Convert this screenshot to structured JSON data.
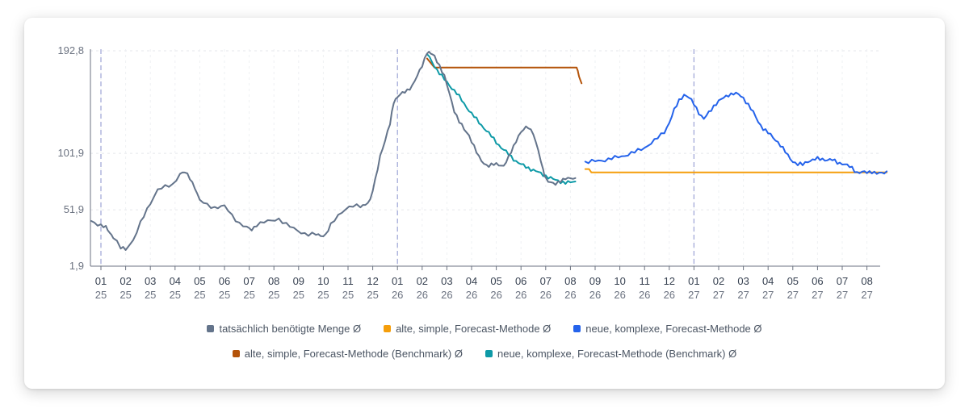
{
  "chart_data": {
    "type": "line",
    "y_ticks": [
      "192,8",
      "101,9",
      "51,9",
      "1,9"
    ],
    "ylim": [
      1.9,
      192.8
    ],
    "x_ticks": [
      {
        "m": "01",
        "y": "25"
      },
      {
        "m": "02",
        "y": "25"
      },
      {
        "m": "03",
        "y": "25"
      },
      {
        "m": "04",
        "y": "25"
      },
      {
        "m": "05",
        "y": "25"
      },
      {
        "m": "06",
        "y": "25"
      },
      {
        "m": "07",
        "y": "25"
      },
      {
        "m": "08",
        "y": "25"
      },
      {
        "m": "09",
        "y": "25"
      },
      {
        "m": "10",
        "y": "25"
      },
      {
        "m": "11",
        "y": "25"
      },
      {
        "m": "12",
        "y": "25"
      },
      {
        "m": "01",
        "y": "26"
      },
      {
        "m": "02",
        "y": "26"
      },
      {
        "m": "03",
        "y": "26"
      },
      {
        "m": "04",
        "y": "26"
      },
      {
        "m": "05",
        "y": "26"
      },
      {
        "m": "06",
        "y": "26"
      },
      {
        "m": "07",
        "y": "26"
      },
      {
        "m": "08",
        "y": "26"
      },
      {
        "m": "09",
        "y": "26"
      },
      {
        "m": "10",
        "y": "26"
      },
      {
        "m": "11",
        "y": "26"
      },
      {
        "m": "12",
        "y": "26"
      },
      {
        "m": "01",
        "y": "27"
      },
      {
        "m": "02",
        "y": "27"
      },
      {
        "m": "03",
        "y": "27"
      },
      {
        "m": "04",
        "y": "27"
      },
      {
        "m": "05",
        "y": "27"
      },
      {
        "m": "06",
        "y": "27"
      },
      {
        "m": "07",
        "y": "27"
      },
      {
        "m": "08",
        "y": "27"
      }
    ],
    "year_boundaries": [
      "2025-01",
      "2026-01",
      "2027-01"
    ],
    "grid": true,
    "legend_position": "bottom",
    "series": [
      {
        "name": "tatsächlich benötigte Menge Ø",
        "color": "#64748b",
        "x": [
          -0.4,
          0,
          0.2,
          0.35,
          0.5,
          0.8,
          1,
          1.3,
          1.6,
          2,
          2.3,
          2.6,
          2.9,
          3.2,
          3.4,
          3.6,
          3.8,
          4,
          4.3,
          4.6,
          5,
          5.3,
          5.6,
          5.9,
          6.1,
          6.3,
          6.6,
          6.9,
          7.2,
          7.5,
          7.8,
          8.1,
          8.4,
          8.7,
          8.9,
          9.1,
          9.3,
          9.6,
          9.9,
          10.2,
          10.5,
          10.7,
          10.9,
          11.1,
          11.3,
          11.5,
          11.7,
          11.85,
          12,
          12.2,
          12.4,
          12.6,
          12.8,
          13,
          13.2,
          13.35,
          13.5,
          13.7,
          13.9,
          14.1,
          14.3,
          14.5,
          14.7,
          14.9,
          15.1,
          15.3,
          15.5,
          15.7,
          15.9,
          16.1,
          16.3,
          16.5,
          16.7,
          16.9,
          17.1,
          17.3,
          17.5,
          17.7,
          17.9,
          18,
          18.2,
          18.4,
          18.6,
          18.8,
          19,
          19.2
        ],
        "y": [
          42,
          38,
          36,
          32,
          28,
          18,
          17,
          25,
          40,
          58,
          70,
          72,
          74,
          84,
          85,
          80,
          72,
          60,
          56,
          54,
          55,
          47,
          40,
          36,
          34,
          39,
          41,
          42,
          44,
          39,
          35,
          32,
          30,
          30,
          29,
          30,
          38,
          47,
          53,
          55,
          55,
          57,
          60,
          78,
          100,
          113,
          128,
          148,
          152,
          155,
          158,
          162,
          170,
          180,
          192,
          190,
          188,
          180,
          170,
          155,
          140,
          130,
          123,
          118,
          108,
          98,
          93,
          91,
          92,
          92,
          91,
          98,
          108,
          118,
          123,
          125,
          120,
          104,
          86,
          80,
          76,
          74,
          78,
          80,
          79,
          80
        ]
      },
      {
        "name": "alte, simple, Forecast-Methode Ø",
        "color": "#f59e0b",
        "x": [
          19.6,
          19.75,
          19.85,
          20.2,
          21,
          22,
          23,
          24,
          25,
          26,
          27,
          28,
          29,
          30,
          31,
          31.8
        ],
        "y": [
          88,
          88,
          85,
          85,
          85,
          85,
          85,
          85,
          85,
          85,
          85,
          85,
          85,
          85,
          85,
          85
        ]
      },
      {
        "name": "neue, komplexe, Forecast-Methode Ø",
        "color": "#2563eb",
        "x": [
          19.6,
          20,
          20.4,
          20.8,
          21.2,
          21.6,
          22,
          22.4,
          22.8,
          23,
          23.2,
          23.4,
          23.6,
          23.8,
          24,
          24.2,
          24.4,
          24.6,
          24.8,
          25,
          25.2,
          25.4,
          25.6,
          25.8,
          26,
          26.2,
          26.4,
          26.6,
          26.8,
          27,
          27.2,
          27.4,
          27.6,
          27.8,
          28,
          28.2,
          28.4,
          28.6,
          28.8,
          29,
          29.2,
          29.4,
          29.6,
          29.8,
          30,
          30.2,
          30.4,
          30.6,
          30.8,
          31,
          31.2,
          31.4,
          31.6,
          31.8
        ],
        "y": [
          94,
          95,
          96,
          98,
          100,
          103,
          107,
          113,
          121,
          129,
          140,
          149,
          154,
          151,
          146,
          138,
          132,
          138,
          144,
          148,
          151,
          154,
          155,
          154,
          151,
          145,
          138,
          130,
          124,
          120,
          116,
          112,
          106,
          100,
          95,
          92,
          92,
          95,
          96,
          97,
          97,
          96,
          96,
          94,
          93,
          91,
          89,
          85,
          85,
          85,
          86,
          84,
          84,
          86
        ]
      },
      {
        "name": "alte, simple, Forecast-Methode (Benchmark) Ø",
        "color": "#b45309",
        "x": [
          13.2,
          13.5,
          14,
          15,
          16,
          17,
          18,
          19,
          19.25,
          19.3,
          19.35,
          19.45
        ],
        "y": [
          186,
          178,
          178,
          178,
          178,
          178,
          178,
          178,
          178,
          175,
          170,
          164
        ]
      },
      {
        "name": "neue, komplexe, Forecast-Methode (Benchmark) Ø",
        "color": "#0e9aa7",
        "x": [
          13.2,
          13.4,
          13.6,
          13.8,
          14,
          14.2,
          14.4,
          14.6,
          14.8,
          15,
          15.2,
          15.4,
          15.6,
          15.8,
          16,
          16.2,
          16.4,
          16.6,
          16.8,
          17,
          17.2,
          17.4,
          17.6,
          17.8,
          18,
          18.2,
          18.4,
          18.6,
          18.8,
          19,
          19.2
        ],
        "y": [
          190,
          183,
          176,
          170,
          165,
          160,
          155,
          149,
          143,
          137,
          132,
          127,
          122,
          117,
          112,
          107,
          103,
          99,
          95,
          92,
          90,
          88,
          86,
          84,
          82,
          80,
          78,
          77,
          76,
          76,
          77
        ]
      }
    ]
  }
}
